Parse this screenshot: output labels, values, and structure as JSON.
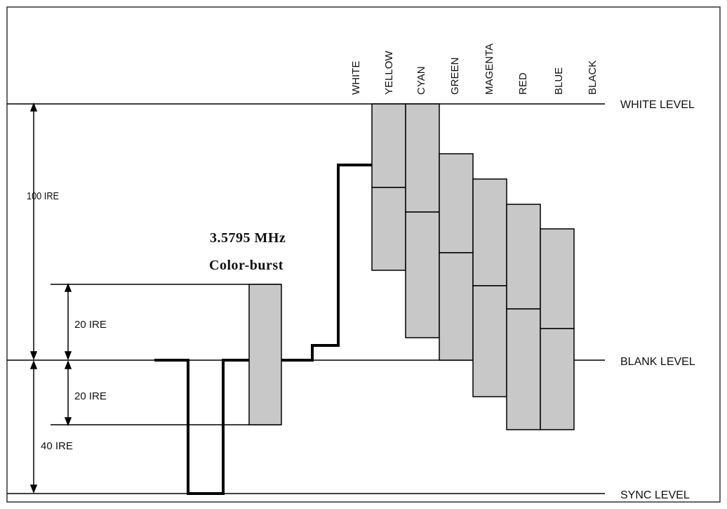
{
  "levels": {
    "white": "WHITE LEVEL",
    "blank": "BLANK LEVEL",
    "sync": "SYNC LEVEL"
  },
  "ire_labels": {
    "full": "100 IRE",
    "burst_upper": "20 IRE",
    "burst_lower": "20 IRE",
    "sync": "40 IRE"
  },
  "color_burst": {
    "frequency": "3.5795 MHz",
    "label": "Color-burst"
  },
  "color_bars": [
    "WHITE",
    "YELLOW",
    "CYAN",
    "GREEN",
    "MAGENTA",
    "RED",
    "BLUE",
    "BLACK"
  ],
  "colors": {
    "bar_fill": "#c8c8c8",
    "stroke": "#000000",
    "background": "#ffffff"
  }
}
